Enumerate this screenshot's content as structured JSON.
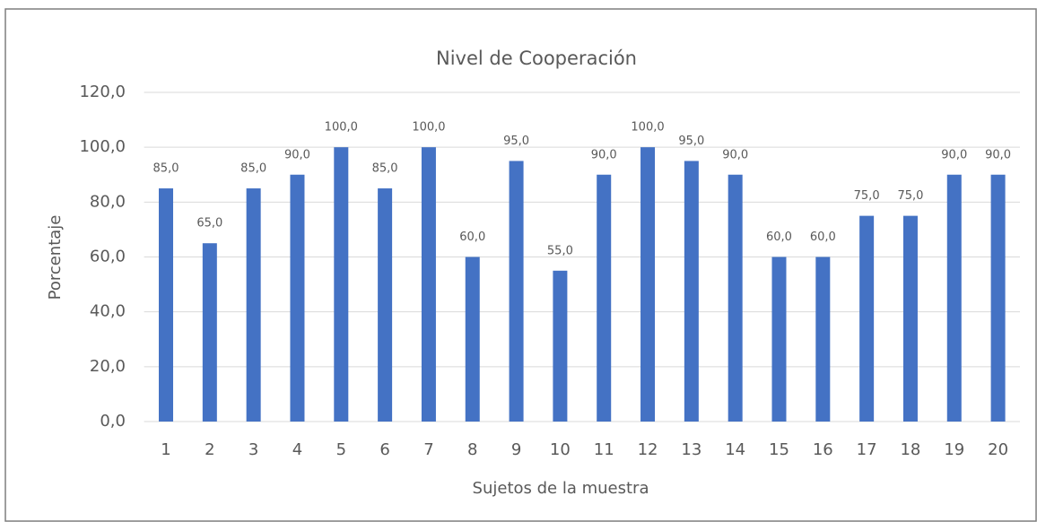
{
  "chart_data": {
    "type": "bar",
    "title": "Nivel de Cooperación",
    "x_label": "Sujetos de la muestra",
    "y_label": "Porcentaje",
    "categories": [
      "1",
      "2",
      "3",
      "4",
      "5",
      "6",
      "7",
      "8",
      "9",
      "10",
      "11",
      "12",
      "13",
      "14",
      "15",
      "16",
      "17",
      "18",
      "19",
      "20"
    ],
    "values": [
      85,
      65,
      85,
      90,
      100,
      85,
      100,
      60,
      95,
      55,
      90,
      100,
      95,
      90,
      60,
      60,
      75,
      75,
      90,
      90
    ],
    "value_labels": [
      "85,0",
      "65,0",
      "85,0",
      "90,0",
      "100,0",
      "85,0",
      "100,0",
      "60,0",
      "95,0",
      "55,0",
      "90,0",
      "100,0",
      "95,0",
      "90,0",
      "60,0",
      "60,0",
      "75,0",
      "75,0",
      "90,0",
      "90,0"
    ],
    "color": "#4472c4",
    "ylim": [
      0,
      120
    ],
    "yticks": [
      {
        "value": 0,
        "label": "0,0"
      },
      {
        "value": 20,
        "label": "20,0"
      },
      {
        "value": 40,
        "label": "40,0"
      },
      {
        "value": 60,
        "label": "60,0"
      },
      {
        "value": 80,
        "label": "80,0"
      },
      {
        "value": 100,
        "label": "100,0"
      },
      {
        "value": 120,
        "label": "120,0"
      }
    ],
    "grid": true
  }
}
